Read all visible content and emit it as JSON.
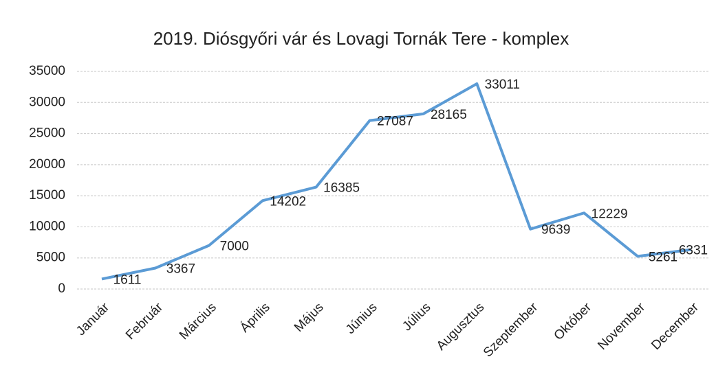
{
  "chart_data": {
    "type": "line",
    "title": "2019. Diósgyőri vár és Lovagi Tornák Tere - komplex",
    "categories": [
      "Január",
      "Február",
      "Március",
      "Április",
      "Május",
      "Június",
      "Július",
      "Augusztus",
      "Szeptember",
      "Október",
      "November",
      "December"
    ],
    "series": [
      {
        "name": null,
        "color": "#5b9bd5",
        "values": [
          1611,
          3367,
          7000,
          14202,
          16385,
          27087,
          28165,
          33011,
          9639,
          12229,
          5261,
          6331
        ]
      }
    ],
    "ylim": [
      0,
      35000
    ],
    "yticks": [
      0,
      5000,
      10000,
      15000,
      20000,
      25000,
      30000,
      35000
    ],
    "grid": true
  }
}
